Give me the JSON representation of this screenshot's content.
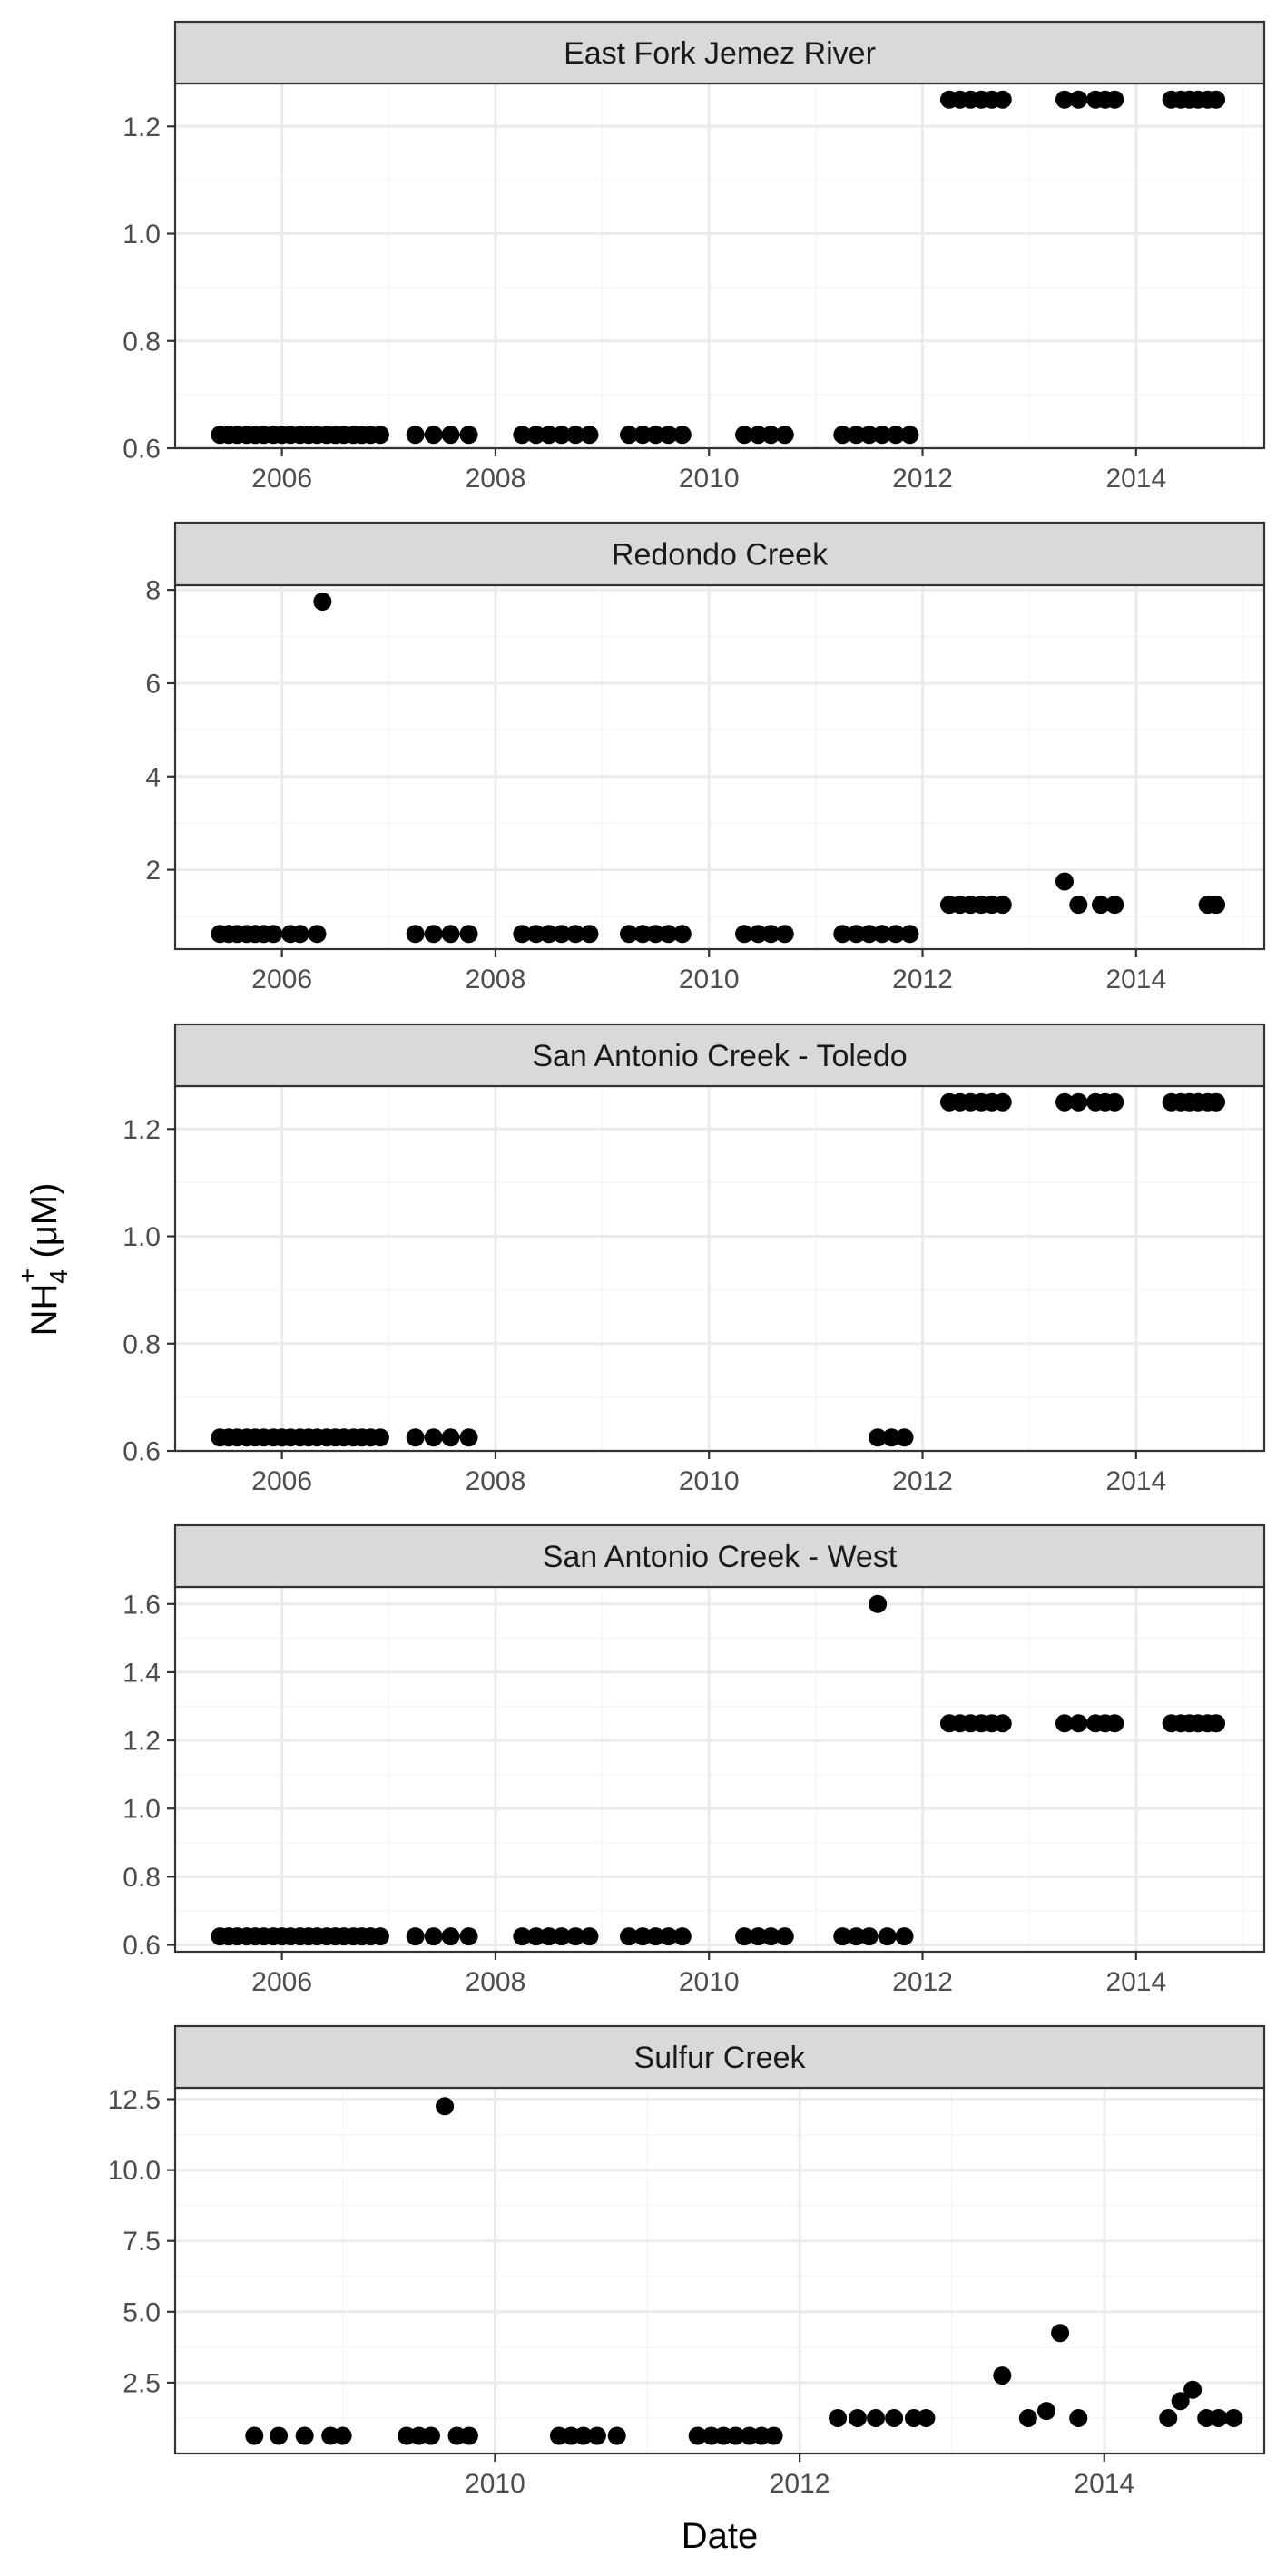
{
  "chart_data": {
    "type": "scatter",
    "layout": "faceted",
    "xlabel": "Date",
    "ylabel_main": "NH",
    "ylabel_sub": "4",
    "ylabel_sup": "+",
    "ylabel_unit": " (μM)",
    "colors": {
      "points": "#000000",
      "strip_fill": "#d9d9d9",
      "grid_major": "#ebebeb",
      "grid_minor": "#f5f5f5",
      "panel_border": "#333333"
    },
    "grid": true,
    "panels": [
      {
        "title": "East Fork Jemez River",
        "xlim": [
          2005.0,
          2015.2
        ],
        "ylim": [
          0.6,
          1.28
        ],
        "xticks": [
          "2006",
          "2008",
          "2010",
          "2012",
          "2014"
        ],
        "xtick_values": [
          2006,
          2008,
          2010,
          2012,
          2014
        ],
        "yticks": [
          "0.6",
          "0.8",
          "1.0",
          "1.2"
        ],
        "ytick_values": [
          0.6,
          0.8,
          1.0,
          1.2
        ],
        "show_xticks": true,
        "points": [
          [
            2005.42,
            0.625
          ],
          [
            2005.5,
            0.625
          ],
          [
            2005.58,
            0.625
          ],
          [
            2005.67,
            0.625
          ],
          [
            2005.75,
            0.625
          ],
          [
            2005.83,
            0.625
          ],
          [
            2005.92,
            0.625
          ],
          [
            2006.0,
            0.625
          ],
          [
            2006.08,
            0.625
          ],
          [
            2006.17,
            0.625
          ],
          [
            2006.25,
            0.625
          ],
          [
            2006.33,
            0.625
          ],
          [
            2006.42,
            0.625
          ],
          [
            2006.5,
            0.625
          ],
          [
            2006.58,
            0.625
          ],
          [
            2006.67,
            0.625
          ],
          [
            2006.75,
            0.625
          ],
          [
            2006.83,
            0.625
          ],
          [
            2006.92,
            0.625
          ],
          [
            2007.25,
            0.625
          ],
          [
            2007.42,
            0.625
          ],
          [
            2007.58,
            0.625
          ],
          [
            2007.75,
            0.625
          ],
          [
            2008.25,
            0.625
          ],
          [
            2008.38,
            0.625
          ],
          [
            2008.5,
            0.625
          ],
          [
            2008.62,
            0.625
          ],
          [
            2008.75,
            0.625
          ],
          [
            2008.88,
            0.625
          ],
          [
            2009.25,
            0.625
          ],
          [
            2009.38,
            0.625
          ],
          [
            2009.5,
            0.625
          ],
          [
            2009.62,
            0.625
          ],
          [
            2009.75,
            0.625
          ],
          [
            2010.33,
            0.625
          ],
          [
            2010.46,
            0.625
          ],
          [
            2010.58,
            0.625
          ],
          [
            2010.71,
            0.625
          ],
          [
            2011.25,
            0.625
          ],
          [
            2011.38,
            0.625
          ],
          [
            2011.5,
            0.625
          ],
          [
            2011.62,
            0.625
          ],
          [
            2011.75,
            0.625
          ],
          [
            2011.88,
            0.625
          ],
          [
            2012.25,
            1.25
          ],
          [
            2012.35,
            1.25
          ],
          [
            2012.45,
            1.25
          ],
          [
            2012.55,
            1.25
          ],
          [
            2012.65,
            1.25
          ],
          [
            2012.75,
            1.25
          ],
          [
            2013.33,
            1.25
          ],
          [
            2013.46,
            1.25
          ],
          [
            2013.62,
            1.25
          ],
          [
            2013.71,
            1.25
          ],
          [
            2013.8,
            1.25
          ],
          [
            2014.33,
            1.25
          ],
          [
            2014.42,
            1.25
          ],
          [
            2014.5,
            1.25
          ],
          [
            2014.58,
            1.25
          ],
          [
            2014.67,
            1.25
          ],
          [
            2014.75,
            1.25
          ]
        ]
      },
      {
        "title": "Redondo Creek",
        "xlim": [
          2005.0,
          2015.2
        ],
        "ylim": [
          0.3,
          8.1
        ],
        "xticks": [
          "2006",
          "2008",
          "2010",
          "2012",
          "2014"
        ],
        "xtick_values": [
          2006,
          2008,
          2010,
          2012,
          2014
        ],
        "yticks": [
          "2",
          "4",
          "6",
          "8"
        ],
        "ytick_values": [
          2,
          4,
          6,
          8
        ],
        "show_xticks": true,
        "points": [
          [
            2005.42,
            0.625
          ],
          [
            2005.5,
            0.625
          ],
          [
            2005.58,
            0.625
          ],
          [
            2005.67,
            0.625
          ],
          [
            2005.75,
            0.625
          ],
          [
            2005.83,
            0.625
          ],
          [
            2005.92,
            0.625
          ],
          [
            2006.08,
            0.625
          ],
          [
            2006.17,
            0.625
          ],
          [
            2006.33,
            0.625
          ],
          [
            2006.38,
            7.75
          ],
          [
            2007.25,
            0.625
          ],
          [
            2007.42,
            0.625
          ],
          [
            2007.58,
            0.625
          ],
          [
            2007.75,
            0.625
          ],
          [
            2008.25,
            0.625
          ],
          [
            2008.38,
            0.625
          ],
          [
            2008.5,
            0.625
          ],
          [
            2008.62,
            0.625
          ],
          [
            2008.75,
            0.625
          ],
          [
            2008.88,
            0.625
          ],
          [
            2009.25,
            0.625
          ],
          [
            2009.38,
            0.625
          ],
          [
            2009.5,
            0.625
          ],
          [
            2009.62,
            0.625
          ],
          [
            2009.75,
            0.625
          ],
          [
            2010.33,
            0.625
          ],
          [
            2010.46,
            0.625
          ],
          [
            2010.58,
            0.625
          ],
          [
            2010.71,
            0.625
          ],
          [
            2011.25,
            0.625
          ],
          [
            2011.38,
            0.625
          ],
          [
            2011.5,
            0.625
          ],
          [
            2011.62,
            0.625
          ],
          [
            2011.75,
            0.625
          ],
          [
            2011.88,
            0.625
          ],
          [
            2012.25,
            1.25
          ],
          [
            2012.35,
            1.25
          ],
          [
            2012.45,
            1.25
          ],
          [
            2012.55,
            1.25
          ],
          [
            2012.65,
            1.25
          ],
          [
            2012.75,
            1.25
          ],
          [
            2013.33,
            1.75
          ],
          [
            2013.46,
            1.25
          ],
          [
            2013.67,
            1.25
          ],
          [
            2013.8,
            1.25
          ],
          [
            2014.67,
            1.25
          ],
          [
            2014.75,
            1.25
          ]
        ]
      },
      {
        "title": "San Antonio Creek - Toledo",
        "xlim": [
          2005.0,
          2015.2
        ],
        "ylim": [
          0.6,
          1.28
        ],
        "xticks": [
          "2006",
          "2008",
          "2010",
          "2012",
          "2014"
        ],
        "xtick_values": [
          2006,
          2008,
          2010,
          2012,
          2014
        ],
        "yticks": [
          "0.6",
          "0.8",
          "1.0",
          "1.2"
        ],
        "ytick_values": [
          0.6,
          0.8,
          1.0,
          1.2
        ],
        "show_xticks": true,
        "points": [
          [
            2005.42,
            0.625
          ],
          [
            2005.5,
            0.625
          ],
          [
            2005.58,
            0.625
          ],
          [
            2005.67,
            0.625
          ],
          [
            2005.75,
            0.625
          ],
          [
            2005.83,
            0.625
          ],
          [
            2005.92,
            0.625
          ],
          [
            2006.0,
            0.625
          ],
          [
            2006.08,
            0.625
          ],
          [
            2006.17,
            0.625
          ],
          [
            2006.25,
            0.625
          ],
          [
            2006.33,
            0.625
          ],
          [
            2006.42,
            0.625
          ],
          [
            2006.5,
            0.625
          ],
          [
            2006.58,
            0.625
          ],
          [
            2006.67,
            0.625
          ],
          [
            2006.75,
            0.625
          ],
          [
            2006.83,
            0.625
          ],
          [
            2006.92,
            0.625
          ],
          [
            2007.25,
            0.625
          ],
          [
            2007.42,
            0.625
          ],
          [
            2007.58,
            0.625
          ],
          [
            2007.75,
            0.625
          ],
          [
            2011.58,
            0.625
          ],
          [
            2011.71,
            0.625
          ],
          [
            2011.83,
            0.625
          ],
          [
            2012.25,
            1.25
          ],
          [
            2012.35,
            1.25
          ],
          [
            2012.45,
            1.25
          ],
          [
            2012.55,
            1.25
          ],
          [
            2012.65,
            1.25
          ],
          [
            2012.75,
            1.25
          ],
          [
            2013.33,
            1.25
          ],
          [
            2013.46,
            1.25
          ],
          [
            2013.62,
            1.25
          ],
          [
            2013.71,
            1.25
          ],
          [
            2013.8,
            1.25
          ],
          [
            2014.33,
            1.25
          ],
          [
            2014.42,
            1.25
          ],
          [
            2014.5,
            1.25
          ],
          [
            2014.58,
            1.25
          ],
          [
            2014.67,
            1.25
          ],
          [
            2014.75,
            1.25
          ]
        ]
      },
      {
        "title": "San Antonio Creek - West",
        "xlim": [
          2005.0,
          2015.2
        ],
        "ylim": [
          0.58,
          1.65
        ],
        "xticks": [
          "2006",
          "2008",
          "2010",
          "2012",
          "2014"
        ],
        "xtick_values": [
          2006,
          2008,
          2010,
          2012,
          2014
        ],
        "yticks": [
          "0.6",
          "0.8",
          "1.0",
          "1.2",
          "1.4",
          "1.6"
        ],
        "ytick_values": [
          0.6,
          0.8,
          1.0,
          1.2,
          1.4,
          1.6
        ],
        "show_xticks": true,
        "points": [
          [
            2005.42,
            0.625
          ],
          [
            2005.5,
            0.625
          ],
          [
            2005.58,
            0.625
          ],
          [
            2005.67,
            0.625
          ],
          [
            2005.75,
            0.625
          ],
          [
            2005.83,
            0.625
          ],
          [
            2005.92,
            0.625
          ],
          [
            2006.0,
            0.625
          ],
          [
            2006.08,
            0.625
          ],
          [
            2006.17,
            0.625
          ],
          [
            2006.25,
            0.625
          ],
          [
            2006.33,
            0.625
          ],
          [
            2006.42,
            0.625
          ],
          [
            2006.5,
            0.625
          ],
          [
            2006.58,
            0.625
          ],
          [
            2006.67,
            0.625
          ],
          [
            2006.75,
            0.625
          ],
          [
            2006.83,
            0.625
          ],
          [
            2006.92,
            0.625
          ],
          [
            2007.25,
            0.625
          ],
          [
            2007.42,
            0.625
          ],
          [
            2007.58,
            0.625
          ],
          [
            2007.75,
            0.625
          ],
          [
            2008.25,
            0.625
          ],
          [
            2008.38,
            0.625
          ],
          [
            2008.5,
            0.625
          ],
          [
            2008.62,
            0.625
          ],
          [
            2008.75,
            0.625
          ],
          [
            2008.88,
            0.625
          ],
          [
            2009.25,
            0.625
          ],
          [
            2009.38,
            0.625
          ],
          [
            2009.5,
            0.625
          ],
          [
            2009.62,
            0.625
          ],
          [
            2009.75,
            0.625
          ],
          [
            2010.33,
            0.625
          ],
          [
            2010.46,
            0.625
          ],
          [
            2010.58,
            0.625
          ],
          [
            2010.71,
            0.625
          ],
          [
            2011.25,
            0.625
          ],
          [
            2011.38,
            0.625
          ],
          [
            2011.5,
            0.625
          ],
          [
            2011.58,
            1.6
          ],
          [
            2011.67,
            0.625
          ],
          [
            2011.83,
            0.625
          ],
          [
            2012.25,
            1.25
          ],
          [
            2012.35,
            1.25
          ],
          [
            2012.45,
            1.25
          ],
          [
            2012.55,
            1.25
          ],
          [
            2012.65,
            1.25
          ],
          [
            2012.75,
            1.25
          ],
          [
            2013.33,
            1.25
          ],
          [
            2013.46,
            1.25
          ],
          [
            2013.62,
            1.25
          ],
          [
            2013.71,
            1.25
          ],
          [
            2013.8,
            1.25
          ],
          [
            2014.33,
            1.25
          ],
          [
            2014.42,
            1.25
          ],
          [
            2014.5,
            1.25
          ],
          [
            2014.58,
            1.25
          ],
          [
            2014.67,
            1.25
          ],
          [
            2014.75,
            1.25
          ]
        ]
      },
      {
        "title": "Sulfur Creek",
        "xlim": [
          2007.9,
          2015.05
        ],
        "ylim": [
          0.0,
          12.9
        ],
        "xticks": [
          "2010",
          "2012",
          "2014"
        ],
        "xtick_values": [
          2010,
          2012,
          2014
        ],
        "yticks": [
          "2.5",
          "5.0",
          "7.5",
          "10.0",
          "12.5"
        ],
        "ytick_values": [
          2.5,
          5.0,
          7.5,
          10.0,
          12.5
        ],
        "show_xticks": true,
        "points": [
          [
            2008.42,
            0.625
          ],
          [
            2008.58,
            0.625
          ],
          [
            2008.75,
            0.625
          ],
          [
            2008.92,
            0.625
          ],
          [
            2009.0,
            0.625
          ],
          [
            2009.42,
            0.625
          ],
          [
            2009.5,
            0.625
          ],
          [
            2009.58,
            0.625
          ],
          [
            2009.67,
            12.25
          ],
          [
            2009.75,
            0.625
          ],
          [
            2009.83,
            0.625
          ],
          [
            2010.42,
            0.625
          ],
          [
            2010.5,
            0.625
          ],
          [
            2010.58,
            0.625
          ],
          [
            2010.67,
            0.625
          ],
          [
            2010.8,
            0.625
          ],
          [
            2011.33,
            0.625
          ],
          [
            2011.42,
            0.625
          ],
          [
            2011.5,
            0.625
          ],
          [
            2011.58,
            0.625
          ],
          [
            2011.67,
            0.625
          ],
          [
            2011.75,
            0.625
          ],
          [
            2011.83,
            0.625
          ],
          [
            2012.25,
            1.25
          ],
          [
            2012.38,
            1.25
          ],
          [
            2012.5,
            1.25
          ],
          [
            2012.62,
            1.25
          ],
          [
            2012.75,
            1.25
          ],
          [
            2012.83,
            1.25
          ],
          [
            2013.33,
            2.75
          ],
          [
            2013.5,
            1.25
          ],
          [
            2013.62,
            1.5
          ],
          [
            2013.71,
            4.25
          ],
          [
            2013.83,
            1.25
          ],
          [
            2014.42,
            1.25
          ],
          [
            2014.5,
            1.85
          ],
          [
            2014.58,
            2.25
          ],
          [
            2014.67,
            1.25
          ],
          [
            2014.75,
            1.25
          ],
          [
            2014.85,
            1.25
          ]
        ]
      }
    ]
  }
}
